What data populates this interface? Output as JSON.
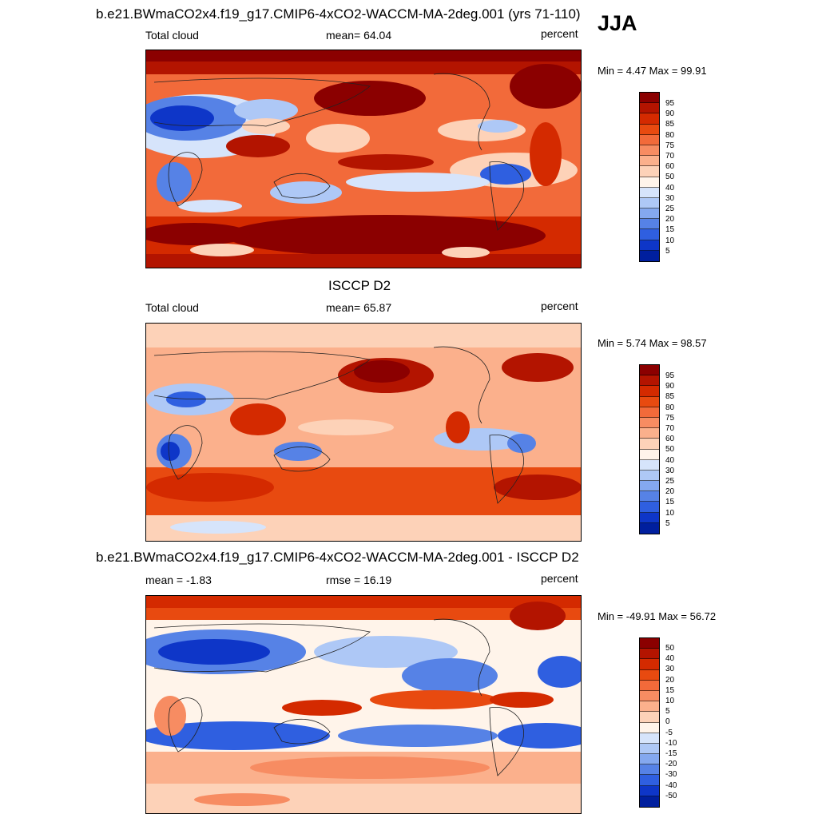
{
  "header": {
    "title": "b.e21.BWmaCO2x4.f19_g17.CMIP6-4xCO2-WACCM-MA-2deg.001 (yrs 71-110)",
    "season": "JJA"
  },
  "panels": [
    {
      "title": "",
      "left_label": "Total cloud",
      "center_label": "mean=  64.04",
      "right_label": "percent",
      "minmax": "Min =   4.47 Max =  99.91",
      "colorbar_ticks": [
        "95",
        "90",
        "85",
        "80",
        "75",
        "70",
        "60",
        "50",
        "40",
        "30",
        "25",
        "20",
        "15",
        "10",
        "5"
      ]
    },
    {
      "title": "ISCCP D2",
      "left_label": "Total cloud",
      "center_label": "mean=  65.87",
      "right_label": "percent",
      "minmax": "Min =   5.74 Max =  98.57",
      "colorbar_ticks": [
        "95",
        "90",
        "85",
        "80",
        "75",
        "70",
        "60",
        "50",
        "40",
        "30",
        "25",
        "20",
        "15",
        "10",
        "5"
      ]
    },
    {
      "title": "b.e21.BWmaCO2x4.f19_g17.CMIP6-4xCO2-WACCM-MA-2deg.001 - ISCCP D2",
      "left_label": "mean =  -1.83",
      "center_label": "rmse =  16.19",
      "right_label": "percent",
      "minmax": "Min = -49.91 Max =  56.72",
      "colorbar_ticks": [
        "50",
        "40",
        "30",
        "20",
        "15",
        "10",
        "5",
        "0",
        "-5",
        "-10",
        "-15",
        "-20",
        "-30",
        "-40",
        "-50"
      ]
    }
  ],
  "colors": {
    "palette_high_to_low": [
      "#8b0000",
      "#b31400",
      "#d42a00",
      "#e84a10",
      "#f26a3a",
      "#f78c62",
      "#fbb08c",
      "#fdd2b8",
      "#fff4ea",
      "#d6e4fb",
      "#aec8f6",
      "#84a8ef",
      "#5682e6",
      "#2f5fe0",
      "#0e36c8",
      "#001f9e"
    ]
  }
}
